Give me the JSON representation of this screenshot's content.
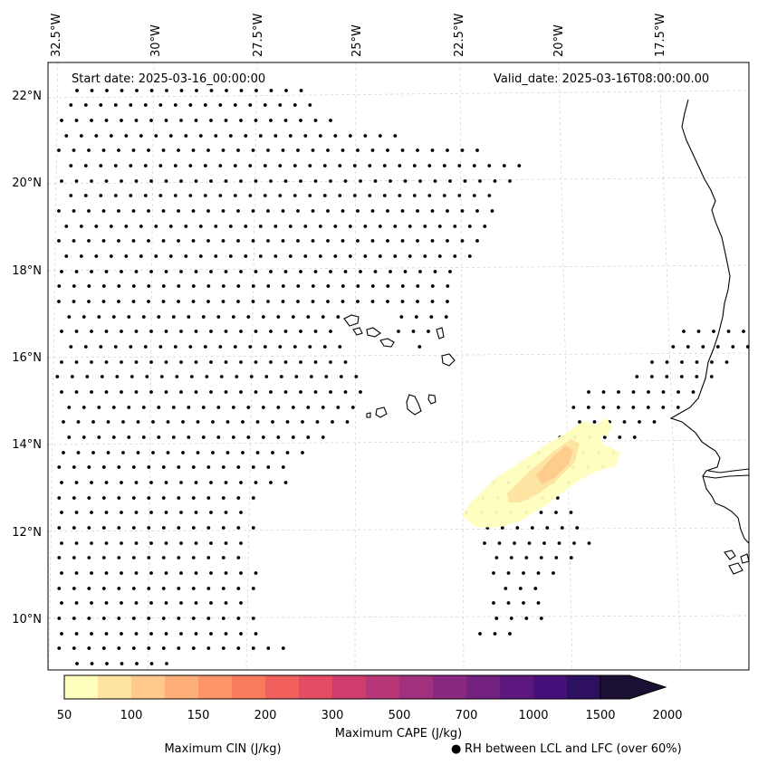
{
  "header": {
    "start_date": "Start date: 2025-03-16_00:00:00",
    "valid_date": "Valid_date: 2025-03-16T08:00:00.00"
  },
  "longitude_labels": [
    "32.5°W",
    "30°W",
    "27.5°W",
    "25°W",
    "22.5°W",
    "20°W",
    "17.5°W"
  ],
  "latitude_labels": [
    "22°N",
    "20°N",
    "18°N",
    "16°N",
    "14°N",
    "12°N",
    "10°N"
  ],
  "colorbar": {
    "ticks": [
      "50",
      "100",
      "150",
      "200",
      "300",
      "500",
      "700",
      "1000",
      "1500",
      "2000"
    ],
    "label": "Maximum CAPE (J/kg)",
    "colors": [
      "#fefebd",
      "#fee3a1",
      "#fec98a",
      "#feae77",
      "#fd9468",
      "#fa7a5e",
      "#f1605d",
      "#e34c63",
      "#cf3d6d",
      "#b73779",
      "#a1307e",
      "#8a2981",
      "#732181",
      "#5c187f",
      "#45107a",
      "#2d1160",
      "#1b1034"
    ],
    "extend": "max"
  },
  "legend": {
    "cin_label": "Maximum CIN (J/kg)",
    "cin_color": "#ff0000",
    "rh_marker": "●",
    "rh_label": "RH between LCL and LFC (over 60%)"
  }
}
